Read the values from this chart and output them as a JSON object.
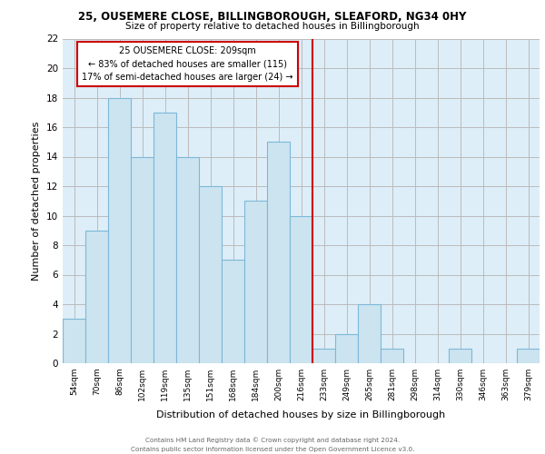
{
  "title1": "25, OUSEMERE CLOSE, BILLINGBOROUGH, SLEAFORD, NG34 0HY",
  "title2": "Size of property relative to detached houses in Billingborough",
  "xlabel": "Distribution of detached houses by size in Billingborough",
  "ylabel": "Number of detached properties",
  "bar_labels": [
    "54sqm",
    "70sqm",
    "86sqm",
    "102sqm",
    "119sqm",
    "135sqm",
    "151sqm",
    "168sqm",
    "184sqm",
    "200sqm",
    "216sqm",
    "233sqm",
    "249sqm",
    "265sqm",
    "281sqm",
    "298sqm",
    "314sqm",
    "330sqm",
    "346sqm",
    "363sqm",
    "379sqm"
  ],
  "bar_values": [
    3,
    9,
    18,
    14,
    17,
    14,
    12,
    7,
    11,
    15,
    10,
    1,
    2,
    4,
    1,
    0,
    0,
    1,
    0,
    0,
    1
  ],
  "bar_color": "#cce4f0",
  "bar_edge_color": "#7db8d8",
  "vline_x": 10.5,
  "vline_color": "#cc0000",
  "annotation_title": "25 OUSEMERE CLOSE: 209sqm",
  "annotation_line1": "← 83% of detached houses are smaller (115)",
  "annotation_line2": "17% of semi-detached houses are larger (24) →",
  "annotation_box_color": "white",
  "annotation_box_edge": "#cc0000",
  "grid_color": "#bbbbbb",
  "background_color": "#ddeef8",
  "ylim": [
    0,
    22
  ],
  "yticks": [
    0,
    2,
    4,
    6,
    8,
    10,
    12,
    14,
    16,
    18,
    20,
    22
  ],
  "footer1": "Contains HM Land Registry data © Crown copyright and database right 2024.",
  "footer2": "Contains public sector information licensed under the Open Government Licence v3.0."
}
